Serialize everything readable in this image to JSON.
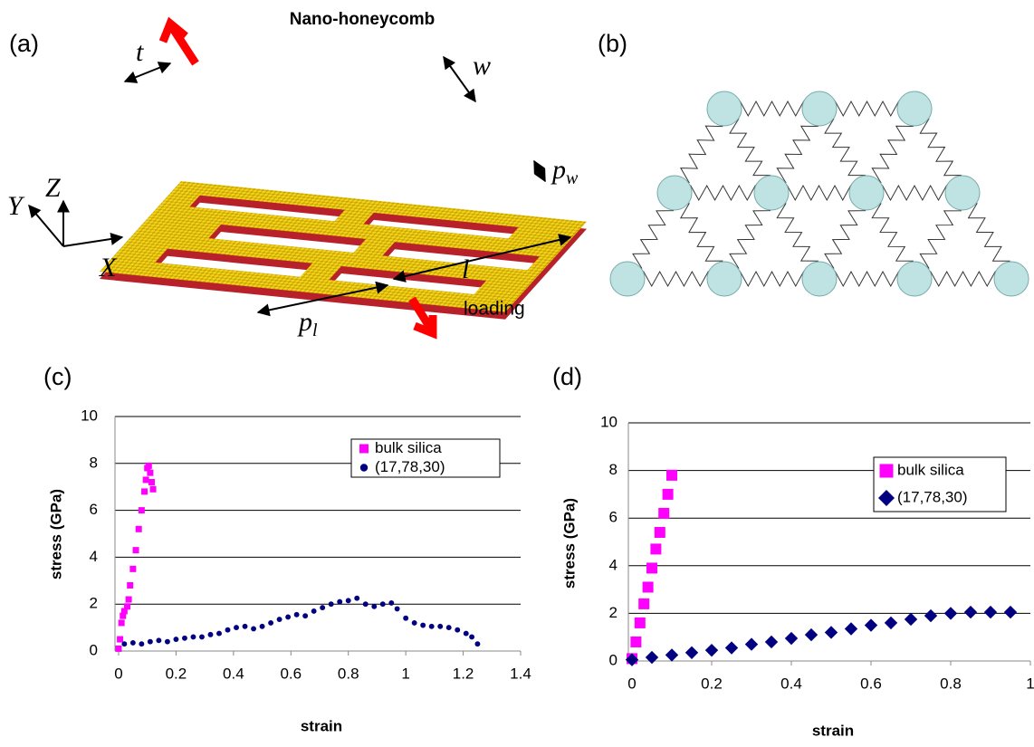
{
  "panels": {
    "a": {
      "label": "(a)",
      "title": "Nano-honeycomb",
      "t": "t",
      "w": "w",
      "pw": {
        "main": "p",
        "sub": "w"
      },
      "z": "Z",
      "y": "Y",
      "x": "X",
      "l": "l",
      "loading": "loading",
      "pl": {
        "main": "p",
        "sub": "l"
      }
    },
    "b": {
      "label": "(b)"
    }
  },
  "chart_data": [
    {
      "type": "scatter",
      "panel_label": "(c)",
      "x_label": "strain",
      "y_label": "stress (GPa)",
      "xlim": [
        0,
        1.4
      ],
      "ylim": [
        0,
        10
      ],
      "xticks": [
        0,
        0.2,
        0.4,
        0.6,
        0.8,
        1,
        1.2,
        1.4
      ],
      "yticks": [
        0,
        2,
        4,
        6,
        8,
        10
      ],
      "grid": true,
      "series": [
        {
          "name": "bulk silica",
          "color": "#ff00ff",
          "marker": "square",
          "x": [
            0,
            0.005,
            0.01,
            0.015,
            0.02,
            0.03,
            0.035,
            0.04,
            0.05,
            0.06,
            0.07,
            0.08,
            0.09,
            0.095,
            0.1,
            0.105,
            0.11,
            0.115,
            0.12
          ],
          "values": [
            0.1,
            0.5,
            1.2,
            1.5,
            1.7,
            1.9,
            2.2,
            2.8,
            3.5,
            4.3,
            5.2,
            6.0,
            6.8,
            7.3,
            7.8,
            7.9,
            7.6,
            7.2,
            6.9
          ]
        },
        {
          "name": "(17,78,30)",
          "color": "#000080",
          "marker": "circle",
          "x": [
            0.02,
            0.05,
            0.08,
            0.11,
            0.14,
            0.17,
            0.2,
            0.23,
            0.26,
            0.29,
            0.32,
            0.35,
            0.38,
            0.41,
            0.44,
            0.47,
            0.5,
            0.53,
            0.56,
            0.59,
            0.62,
            0.65,
            0.68,
            0.71,
            0.74,
            0.77,
            0.8,
            0.83,
            0.86,
            0.89,
            0.92,
            0.95,
            0.97,
            1.0,
            1.03,
            1.06,
            1.09,
            1.12,
            1.15,
            1.18,
            1.21,
            1.23,
            1.25
          ],
          "values": [
            0.3,
            0.35,
            0.3,
            0.4,
            0.45,
            0.4,
            0.5,
            0.55,
            0.6,
            0.6,
            0.7,
            0.75,
            0.9,
            1.0,
            1.05,
            0.95,
            1.05,
            1.2,
            1.35,
            1.45,
            1.55,
            1.5,
            1.7,
            1.85,
            2.0,
            2.1,
            2.15,
            2.25,
            2.0,
            1.9,
            2.0,
            2.05,
            1.8,
            1.4,
            1.2,
            1.1,
            1.05,
            1.05,
            1.0,
            0.9,
            0.75,
            0.6,
            0.3
          ]
        }
      ]
    },
    {
      "type": "scatter",
      "panel_label": "(d)",
      "x_label": "strain",
      "y_label": "stress (GPa)",
      "xlim": [
        0,
        1
      ],
      "ylim": [
        0,
        10
      ],
      "xticks": [
        0,
        0.2,
        0.4,
        0.6,
        0.8,
        1
      ],
      "yticks": [
        0,
        2,
        4,
        6,
        8,
        10
      ],
      "grid": true,
      "series": [
        {
          "name": "bulk silica",
          "color": "#ff00ff",
          "marker": "square",
          "x": [
            0,
            0.01,
            0.02,
            0.03,
            0.04,
            0.05,
            0.06,
            0.07,
            0.08,
            0.09,
            0.1
          ],
          "values": [
            0.1,
            0.8,
            1.6,
            2.4,
            3.1,
            3.9,
            4.7,
            5.4,
            6.2,
            7.0,
            7.8
          ]
        },
        {
          "name": "(17,78,30)",
          "color": "#000080",
          "marker": "diamond",
          "x": [
            0,
            0.05,
            0.1,
            0.15,
            0.2,
            0.25,
            0.3,
            0.35,
            0.4,
            0.45,
            0.5,
            0.55,
            0.6,
            0.65,
            0.7,
            0.75,
            0.8,
            0.85,
            0.9,
            0.95
          ],
          "values": [
            0.05,
            0.15,
            0.25,
            0.35,
            0.45,
            0.55,
            0.7,
            0.8,
            0.95,
            1.1,
            1.2,
            1.35,
            1.5,
            1.6,
            1.75,
            1.9,
            2.0,
            2.05,
            2.05,
            2.05
          ]
        }
      ]
    }
  ]
}
